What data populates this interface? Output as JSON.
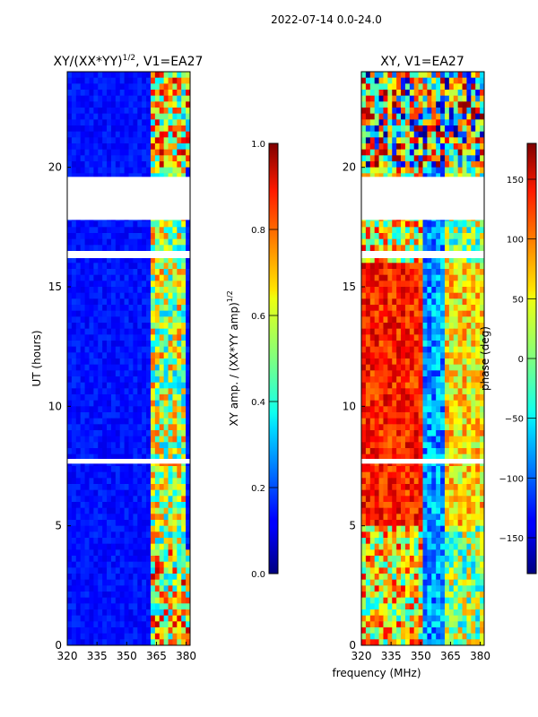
{
  "chart_data": {
    "suptitle": "2022-07-14 0.0-24.0",
    "xlabel": "frequency (MHz)",
    "panels": [
      {
        "type": "heatmap",
        "title_base": "XY/(XX*YY)",
        "title_sup": "1/2",
        "title_tail": ", V1=EA27",
        "ylabel": "UT (hours)",
        "xlim": [
          320,
          382
        ],
        "ylim": [
          0,
          24
        ],
        "xticks": [
          320,
          335,
          350,
          365,
          380
        ],
        "yticks": [
          0,
          5,
          10,
          15,
          20
        ],
        "colorbar": {
          "label_base": "XY amp. / (XX*YY amp)",
          "label_sup": "1/2",
          "range": [
            0.0,
            1.0
          ],
          "ticks": [
            0.0,
            0.2,
            0.4,
            0.6,
            0.8,
            1.0
          ],
          "tick_labels": [
            "0.0",
            "0.2",
            "0.4",
            "0.6",
            "0.8",
            "1.0"
          ]
        },
        "data_gaps_hours": [
          [
            17.8,
            19.6
          ],
          [
            16.2,
            16.5
          ],
          [
            7.6,
            7.8
          ]
        ]
      },
      {
        "type": "heatmap",
        "title_base": "XY, V1=EA27",
        "ylabel": "",
        "xlim": [
          320,
          382
        ],
        "ylim": [
          0,
          24
        ],
        "xticks": [
          320,
          335,
          350,
          365,
          380
        ],
        "yticks": [
          0,
          5,
          10,
          15,
          20
        ],
        "colorbar": {
          "label": "phase (deg)",
          "range": [
            -180,
            180
          ],
          "ticks": [
            -150,
            -100,
            -50,
            0,
            50,
            100,
            150
          ],
          "tick_labels": [
            "−150",
            "−100",
            "−50",
            "0",
            "50",
            "100",
            "150"
          ]
        },
        "data_gaps_hours": [
          [
            17.8,
            19.6
          ],
          [
            16.2,
            16.5
          ],
          [
            7.6,
            7.8
          ]
        ]
      }
    ]
  }
}
